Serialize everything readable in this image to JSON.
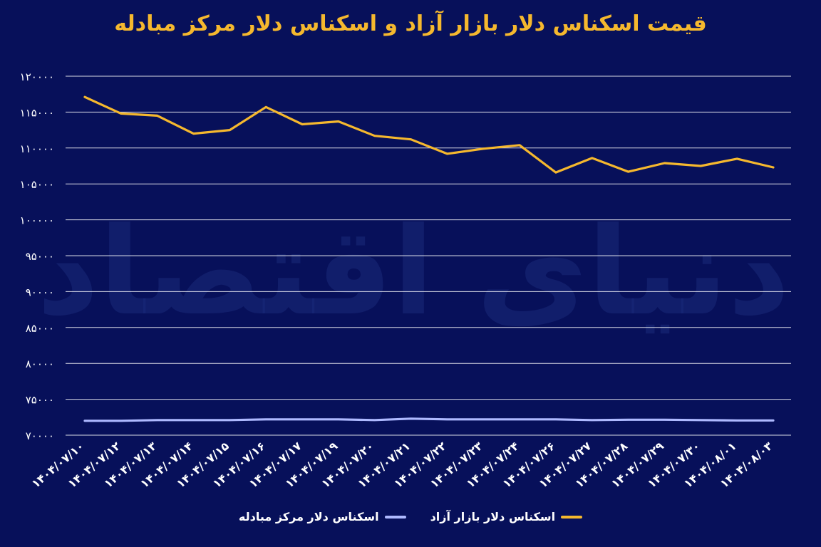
{
  "chart_data": {
    "type": "line",
    "title": "قیمت اسکناس دلار بازار آزاد و اسکناس دلار مرکز مبادله",
    "xlabel": "",
    "ylabel": "",
    "ylim": [
      70000,
      120000
    ],
    "y_ticks": [
      "۷۰۰۰۰",
      "۷۵۰۰۰",
      "۸۰۰۰۰",
      "۸۵۰۰۰",
      "۹۰۰۰۰",
      "۹۵۰۰۰",
      "۱۰۰۰۰۰",
      "۱۰۵۰۰۰",
      "۱۱۰۰۰۰",
      "۱۱۵۰۰۰",
      "۱۲۰۰۰۰"
    ],
    "y_tick_values": [
      70000,
      75000,
      80000,
      85000,
      90000,
      95000,
      100000,
      105000,
      110000,
      115000,
      120000
    ],
    "grid": true,
    "legend_position": "bottom",
    "categories": [
      "۱۴۰۴/۰۷/۱۰",
      "۱۴۰۴/۰۷/۱۲",
      "۱۴۰۴/۰۷/۱۳",
      "۱۴۰۴/۰۷/۱۴",
      "۱۴۰۴/۰۷/۱۵",
      "۱۴۰۴/۰۷/۱۶",
      "۱۴۰۴/۰۷/۱۷",
      "۱۴۰۴/۰۷/۱۹",
      "۱۴۰۴/۰۷/۲۰",
      "۱۴۰۴/۰۷/۲۱",
      "۱۴۰۴/۰۷/۲۲",
      "۱۴۰۴/۰۷/۲۳",
      "۱۴۰۴/۰۷/۲۴",
      "۱۴۰۴/۰۷/۲۶",
      "۱۴۰۴/۰۷/۲۷",
      "۱۴۰۴/۰۷/۲۸",
      "۱۴۰۴/۰۷/۲۹",
      "۱۴۰۴/۰۷/۳۰",
      "۱۴۰۴/۰۸/۰۱",
      "۱۴۰۴/۰۸/۰۳"
    ],
    "series": [
      {
        "name": "اسکناس دلار بازار آزاد",
        "color": "#f5b82e",
        "values": [
          117100,
          114800,
          114500,
          112000,
          112500,
          115700,
          113300,
          113700,
          111700,
          111200,
          109200,
          109900,
          110400,
          106600,
          108600,
          106700,
          107900,
          107500,
          108500,
          107300
        ]
      },
      {
        "name": "اسکناس دلار مرکز مبادله",
        "color": "#aeb9ff",
        "values": [
          72000,
          72000,
          72100,
          72100,
          72100,
          72200,
          72200,
          72200,
          72100,
          72300,
          72200,
          72200,
          72200,
          72200,
          72100,
          72150,
          72150,
          72100,
          72050,
          72050
        ]
      }
    ]
  },
  "watermark": "دنیای اقتصاد"
}
